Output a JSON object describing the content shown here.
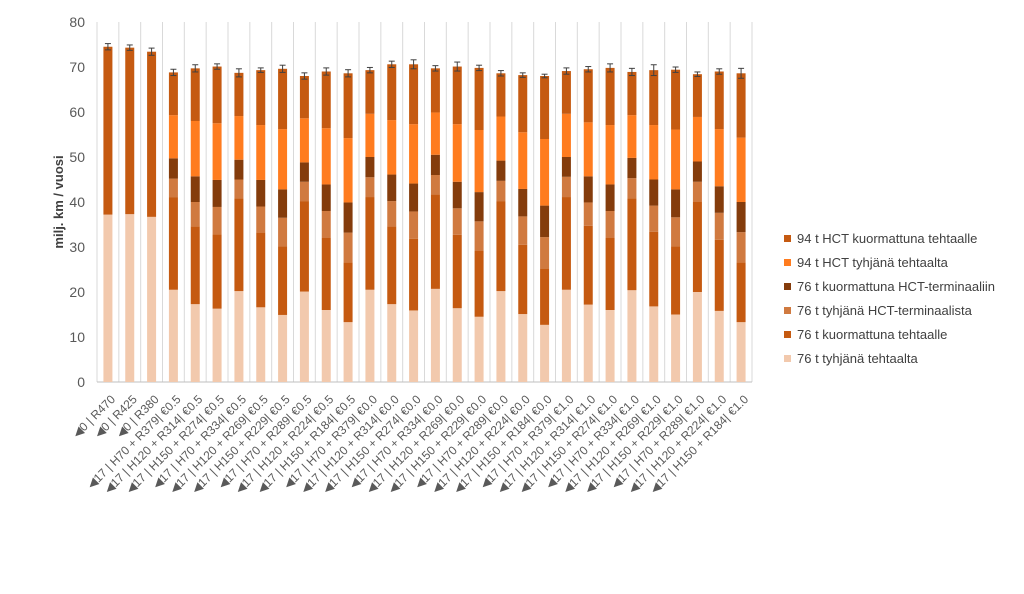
{
  "chart_data": {
    "type": "bar",
    "stacked": true,
    "error_bars": true,
    "ylabel": "milj. km / vuosi",
    "ylim": [
      0,
      80
    ],
    "yticks": [
      0,
      10,
      20,
      30,
      40,
      50,
      60,
      70,
      80
    ],
    "grid": "vertical",
    "legend_position": "right",
    "categories": [
      "◀0 | R470",
      "◀0 | R425",
      "◀0 | R380",
      "◀17 | H70 + R379| €0.5",
      "◀17 | H120 + R314| €0.5",
      "◀17 | H150 + R274| €0.5",
      "◀17 | H70 + R334| €0.5",
      "◀17 | H120 + R269| €0.5",
      "◀17 | H150 + R229| €0.5",
      "◀17 | H70 + R289| €0.5",
      "◀17 | H120 + R224| €0.5",
      "◀17 | H150 + R184| €0.5",
      "◀17 | H70 + R379| €0.0",
      "◀17 | H120 + R314| €0.0",
      "◀17 | H150 + R274| €0.0",
      "◀17 | H70 + R334| €0.0",
      "◀17 | H120 + R269| €0.0",
      "◀17 | H150 + R229| €0.0",
      "◀17 | H70 + R289| €0.0",
      "◀17 | H120 + R224| €0.0",
      "◀17 | H150 + R184| €0.0",
      "◀17 | H70 + R379| €1.0",
      "◀17 | H120 + R314| €1.0",
      "◀17 | H150 + R274| €1.0",
      "◀17 | H70 + R334| €1.0",
      "◀17 | H120 + R269| €1.0",
      "◀17 | H150 + R229| €1.0",
      "◀17 | H70 + R289| €1.0",
      "◀17 | H120 + R224| €1.0",
      "◀17 | H150 + R184| €1.0"
    ],
    "series": [
      {
        "name": "76 t tyhjänä tehtaalta",
        "color": "#f2c9ad",
        "values": [
          37.2,
          37.3,
          36.7,
          20.5,
          17.3,
          16.3,
          20.2,
          16.6,
          14.9,
          20.1,
          16.0,
          13.3,
          20.5,
          17.3,
          15.9,
          20.7,
          16.4,
          14.5,
          20.2,
          15.1,
          12.7,
          20.5,
          17.2,
          16.0,
          20.4,
          16.8,
          15.0,
          20.0,
          15.8,
          13.3
        ]
      },
      {
        "name": "76 t kuormattuna tehtaalle",
        "color": "#c55a11",
        "values": [
          37.3,
          37.0,
          36.7,
          20.5,
          17.3,
          16.5,
          20.6,
          16.6,
          15.2,
          20.1,
          16.0,
          13.3,
          20.6,
          17.3,
          15.9,
          21.0,
          16.3,
          14.7,
          20.0,
          15.4,
          12.5,
          20.6,
          17.5,
          16.0,
          20.4,
          16.6,
          15.1,
          20.0,
          15.8,
          13.3
        ]
      },
      {
        "name": "76 t tyhjänä HCT-terminaalista",
        "color": "#d07a40",
        "values": [
          0,
          0,
          0,
          4.2,
          5.4,
          6.1,
          4.2,
          5.8,
          6.4,
          4.3,
          6.0,
          6.6,
          4.4,
          5.6,
          6.1,
          4.3,
          5.9,
          6.5,
          4.5,
          6.3,
          7.0,
          4.5,
          5.2,
          6.0,
          4.5,
          5.8,
          6.5,
          4.5,
          6.0,
          6.7
        ]
      },
      {
        "name": "76 t kuormattuna HCT-terminaaliin",
        "color": "#843c0c",
        "values": [
          0,
          0,
          0,
          4.5,
          5.7,
          6.0,
          4.4,
          5.9,
          6.3,
          4.3,
          5.9,
          6.7,
          4.5,
          5.9,
          6.2,
          4.5,
          5.9,
          6.5,
          4.5,
          6.1,
          7.0,
          4.4,
          5.8,
          5.9,
          4.5,
          5.8,
          6.2,
          4.5,
          5.9,
          6.7
        ]
      },
      {
        "name": "94 t HCT tyhjänä tehtaalta",
        "color": "#ff7c1f",
        "values": [
          0,
          0,
          0,
          9.6,
          12.3,
          12.6,
          9.7,
          12.2,
          13.4,
          9.8,
          12.5,
          14.3,
          9.6,
          12.1,
          13.2,
          9.4,
          12.8,
          13.8,
          9.8,
          12.6,
          14.8,
          9.6,
          12.0,
          13.2,
          9.5,
          12.1,
          13.3,
          9.9,
          12.7,
          14.3
        ]
      },
      {
        "name": "94 t HCT kuormattuna tehtaalle",
        "color": "#c55a11",
        "values": [
          0,
          0,
          0,
          9.5,
          11.7,
          12.6,
          9.6,
          12.2,
          13.4,
          9.4,
          12.6,
          14.4,
          9.7,
          12.4,
          13.3,
          9.8,
          12.8,
          13.8,
          9.6,
          12.7,
          14.0,
          9.5,
          11.8,
          12.7,
          9.6,
          12.2,
          13.3,
          9.5,
          12.8,
          14.3
        ]
      }
    ],
    "error": [
      0.7,
      0.6,
      0.8,
      0.7,
      0.8,
      0.6,
      0.9,
      0.5,
      0.8,
      0.7,
      0.8,
      0.8,
      0.6,
      0.7,
      1.0,
      0.6,
      1.0,
      0.6,
      0.6,
      0.5,
      0.4,
      0.7,
      0.6,
      0.9,
      0.8,
      1.2,
      0.6,
      0.5,
      0.6,
      1.1
    ]
  }
}
